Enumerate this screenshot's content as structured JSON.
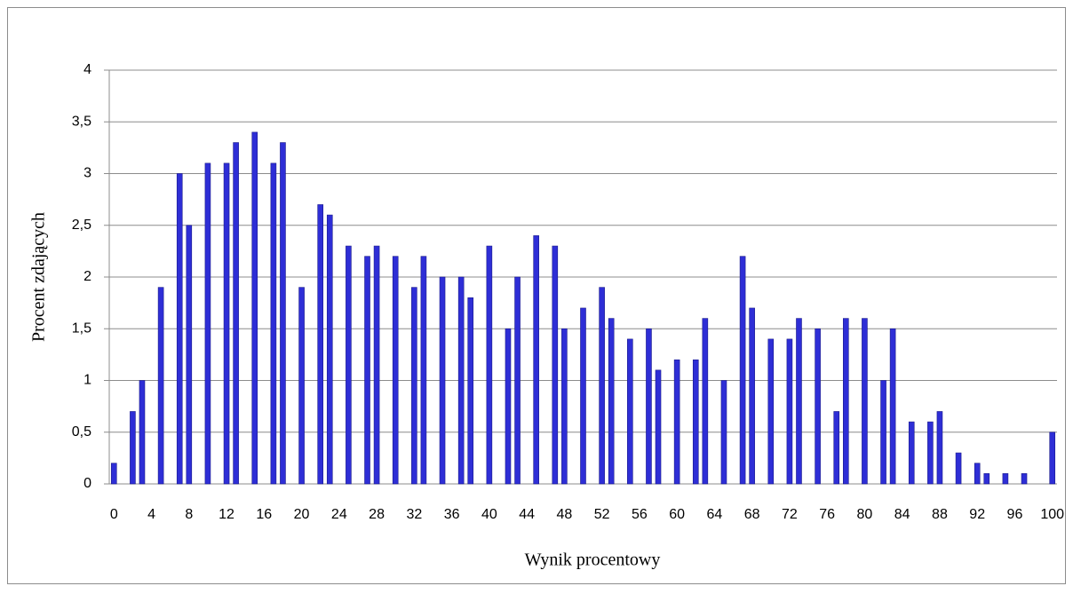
{
  "chart_data": {
    "type": "bar",
    "xlabel": "Wynik procentowy",
    "ylabel": "Procent zdających",
    "categories": [
      "0",
      null,
      null,
      null,
      "4",
      null,
      null,
      null,
      "8",
      null,
      null,
      null,
      "12",
      null,
      null,
      null,
      "16",
      null,
      null,
      null,
      "20",
      null,
      null,
      null,
      "24",
      null,
      null,
      null,
      "28",
      null,
      null,
      null,
      "32",
      null,
      null,
      null,
      "36",
      null,
      null,
      null,
      "40",
      null,
      null,
      null,
      "44",
      null,
      null,
      null,
      "48",
      null,
      null,
      null,
      "52",
      null,
      null,
      null,
      "56",
      null,
      null,
      null,
      "60",
      null,
      null,
      null,
      "64",
      null,
      null,
      null,
      "68",
      null,
      null,
      null,
      "72",
      null,
      null,
      null,
      "76",
      null,
      null,
      null,
      "80",
      null,
      null,
      null,
      "84",
      null,
      null,
      null,
      "88",
      null,
      null,
      null,
      "92",
      null,
      null,
      null,
      "96",
      null,
      null,
      null,
      "100"
    ],
    "values": [
      0.2,
      0,
      0.7,
      1.0,
      0,
      1.9,
      0,
      3.0,
      2.5,
      0,
      3.1,
      0,
      3.1,
      3.3,
      0,
      3.4,
      0,
      3.1,
      3.3,
      0,
      1.9,
      0,
      2.7,
      2.6,
      0,
      2.3,
      0,
      2.2,
      2.3,
      0,
      2.2,
      0,
      1.9,
      2.2,
      0,
      2.0,
      0,
      2.0,
      1.8,
      0,
      2.3,
      0,
      1.5,
      2.0,
      0,
      2.4,
      0,
      2.3,
      1.5,
      0,
      1.7,
      0,
      1.9,
      1.6,
      0,
      1.4,
      0,
      1.5,
      1.1,
      0,
      1.2,
      0,
      1.2,
      1.6,
      0,
      1.0,
      0,
      2.2,
      1.7,
      0,
      1.4,
      0,
      1.4,
      1.6,
      0,
      1.5,
      0,
      0.7,
      1.6,
      0,
      1.6,
      0,
      1.0,
      1.5,
      0,
      0.6,
      0,
      0.6,
      0.7,
      0,
      0.3,
      0,
      0.2,
      0.1,
      0,
      0.1,
      0,
      0.1,
      0,
      0,
      0.5
    ],
    "color": "#2e2ed6",
    "ylim": [
      0,
      4
    ],
    "yticks": [
      0,
      {
        "value": 0.5,
        "label": "0,5"
      },
      1,
      {
        "value": 1.5,
        "label": "1,5"
      },
      2,
      {
        "value": 2.5,
        "label": "2,5"
      },
      3,
      {
        "value": 3.5,
        "label": "3,5"
      },
      4
    ],
    "grid": true
  }
}
